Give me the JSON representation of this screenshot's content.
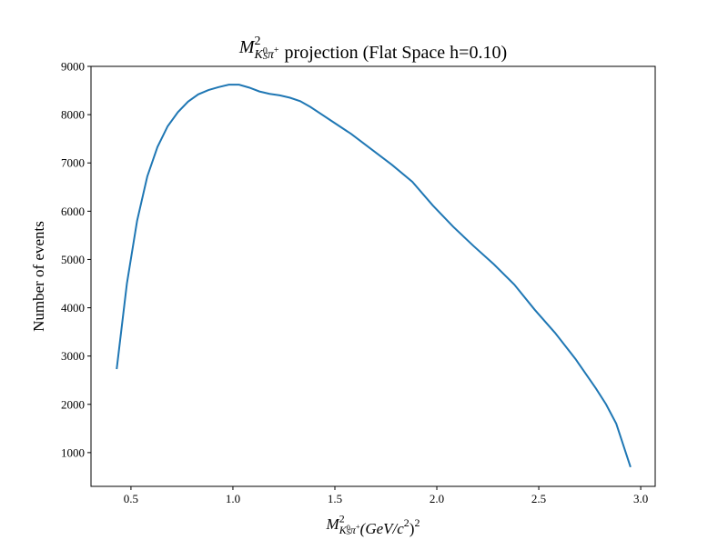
{
  "chart_data": {
    "type": "line",
    "title": {
      "symbol": {
        "base": "M",
        "sup": "2",
        "sub": "K",
        "sub_sub": "S",
        "sub_sup": "0",
        "sub2": "π",
        "sub2_sup": "+"
      },
      "text": "projection (Flat Space h=0.10)"
    },
    "xlabel": {
      "symbol": {
        "base": "M",
        "sup": "2",
        "sub": "K",
        "sub_sub": "S",
        "sub_sup": "0",
        "sub2": "π",
        "sub2_sup": "+"
      },
      "unit": "(GeV/c",
      "unit_sup": "2",
      "unit_close": ")",
      "unit_close_sup": "2"
    },
    "ylabel": "Number of events",
    "x": [
      0.43,
      0.48,
      0.53,
      0.58,
      0.63,
      0.68,
      0.73,
      0.78,
      0.83,
      0.88,
      0.93,
      0.98,
      1.03,
      1.08,
      1.13,
      1.18,
      1.23,
      1.28,
      1.33,
      1.38,
      1.48,
      1.58,
      1.68,
      1.78,
      1.88,
      1.98,
      2.08,
      2.18,
      2.28,
      2.38,
      2.48,
      2.58,
      2.68,
      2.78,
      2.83,
      2.88,
      2.95
    ],
    "series": [
      {
        "name": "projection",
        "color": "#1f77b4",
        "values": [
          2730,
          4500,
          5800,
          6720,
          7330,
          7760,
          8050,
          8270,
          8420,
          8510,
          8570,
          8620,
          8620,
          8560,
          8480,
          8430,
          8400,
          8350,
          8280,
          8160,
          7880,
          7600,
          7280,
          6960,
          6610,
          6120,
          5680,
          5280,
          4900,
          4480,
          3960,
          3480,
          2940,
          2330,
          2000,
          1600,
          700
        ]
      }
    ],
    "xlim": [
      0.304,
      3.071
    ],
    "ylim": [
      301,
      9000
    ],
    "xticks": [
      0.5,
      1.0,
      1.5,
      2.0,
      2.5,
      3.0
    ],
    "yticks": [
      1000,
      2000,
      3000,
      4000,
      5000,
      6000,
      7000,
      8000,
      9000
    ]
  }
}
